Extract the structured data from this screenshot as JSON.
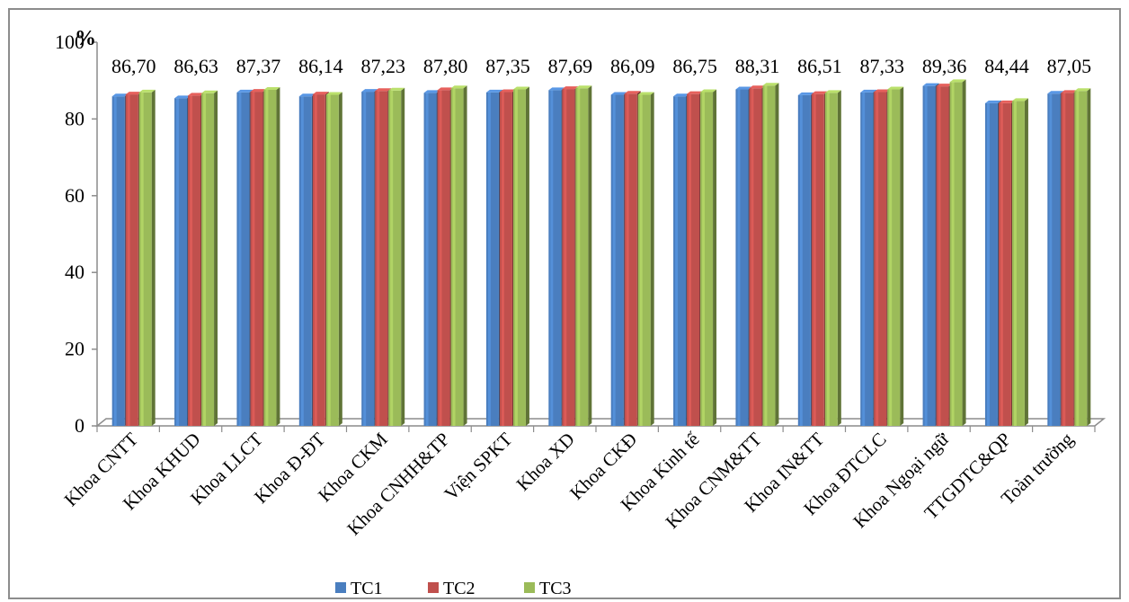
{
  "chart_data": {
    "type": "bar",
    "title": "",
    "xlabel": "",
    "ylabel": "",
    "y_unit": "%",
    "ylim": [
      0,
      100
    ],
    "yticks": [
      0,
      20,
      40,
      60,
      80,
      100
    ],
    "grid": false,
    "legend_position": "bottom",
    "categories": [
      "Khoa CNTT",
      "Khoa KHUD",
      "Khoa LLCT",
      "Khoa Đ-ĐT",
      "Khoa CKM",
      "Khoa CNHH&TP",
      "Viện SPKT",
      "Khoa XD",
      "Khoa CKĐ",
      "Khoa Kinh tế",
      "Khoa CNM&TT",
      "Khoa IN&TT",
      "Khoa ĐTCLC",
      "Khoa Ngoại ngữ",
      "TTGDTC&QP",
      "Toàn trường"
    ],
    "series": [
      {
        "name": "TC1",
        "color": "#4a7ebf",
        "values": [
          85.9,
          85.4,
          86.9,
          85.9,
          87.1,
          86.8,
          86.9,
          87.5,
          86.3,
          85.9,
          87.7,
          86.2,
          86.9,
          88.6,
          84.1,
          86.6
        ]
      },
      {
        "name": "TC2",
        "color": "#c0504d",
        "values": [
          86.4,
          86.1,
          87.1,
          86.4,
          87.3,
          87.5,
          87.0,
          87.8,
          86.6,
          86.5,
          88.0,
          86.5,
          87.0,
          88.5,
          84.1,
          86.8
        ]
      },
      {
        "name": "TC3",
        "color": "#9bbb59",
        "values": [
          86.9,
          86.7,
          87.6,
          86.3,
          87.4,
          88.0,
          87.7,
          88.0,
          86.3,
          87.0,
          88.7,
          86.8,
          87.7,
          89.6,
          84.7,
          87.3
        ]
      }
    ],
    "data_labels": [
      "86,70",
      "86,63",
      "87,37",
      "86,14",
      "87,23",
      "87,80",
      "87,35",
      "87,69",
      "86,09",
      "86,75",
      "88,31",
      "86,51",
      "87,33",
      "89,36",
      "84,44",
      "87,05"
    ]
  }
}
